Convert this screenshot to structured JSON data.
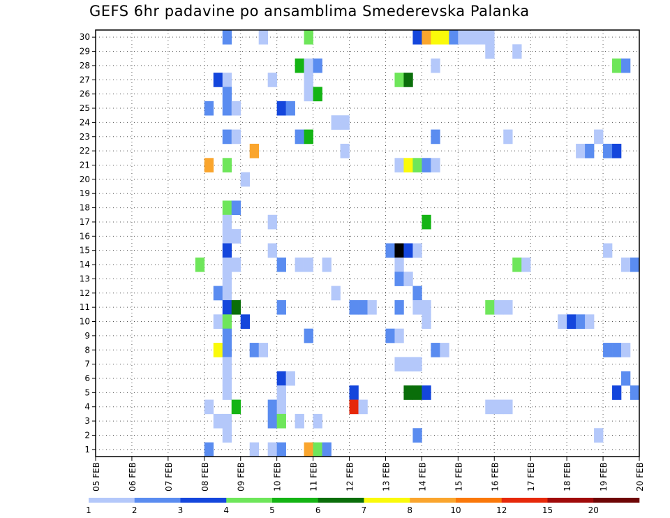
{
  "title": "GEFS 6hr padavine po ansamblima Smederevska Palanka",
  "chart_data": {
    "type": "heatmap",
    "title": "GEFS 6hr padavine po ansamblima Smederevska Palanka",
    "xlabel": "",
    "ylabel": "",
    "x_tick_labels": [
      "05 FEB",
      "06 FEB",
      "07 FEB",
      "08 FEB",
      "09 FEB",
      "10 FEB",
      "11 FEB",
      "12 FEB",
      "13 FEB",
      "14 FEB",
      "15 FEB",
      "16 FEB",
      "17 FEB",
      "18 FEB",
      "19 FEB",
      "20 FEB"
    ],
    "y_tick_labels": [
      "1",
      "2",
      "3",
      "4",
      "5",
      "6",
      "7",
      "8",
      "9",
      "10",
      "11",
      "12",
      "13",
      "14",
      "15",
      "16",
      "17",
      "18",
      "19",
      "20",
      "21",
      "22",
      "23",
      "24",
      "25",
      "26",
      "27",
      "28",
      "29",
      "30"
    ],
    "xlim_days": [
      0,
      15
    ],
    "ylim": [
      0,
      30
    ],
    "step_hours": 6,
    "grid": true,
    "legend_placement": "bottom",
    "legend": {
      "labels": [
        "1",
        "2",
        "3",
        "4",
        "5",
        "6",
        "7",
        "8",
        "10",
        "12",
        "15",
        "20"
      ],
      "colors": [
        "#b4c8fa",
        "#5a8cf0",
        "#1446dc",
        "#6ee65a",
        "#14b414",
        "#0a6e0a",
        "#fafa0a",
        "#faa52d",
        "#fa780a",
        "#e6280a",
        "#a00a0a",
        "#6e0505"
      ]
    },
    "cells": [
      [
        8.5,
        30,
        2
      ],
      [
        9.5,
        30,
        1
      ],
      [
        10.75,
        30,
        4
      ],
      [
        13.75,
        30,
        3
      ],
      [
        14,
        30,
        8
      ],
      [
        14.25,
        30,
        7
      ],
      [
        14.5,
        30,
        7
      ],
      [
        14.75,
        30,
        2
      ],
      [
        15,
        30,
        1
      ],
      [
        15.25,
        30,
        1
      ],
      [
        15.5,
        30,
        1
      ],
      [
        15.75,
        30,
        1
      ],
      [
        15.75,
        29,
        1
      ],
      [
        16.5,
        29,
        1
      ],
      [
        10.5,
        28,
        5
      ],
      [
        10.75,
        28,
        1
      ],
      [
        11,
        28,
        2
      ],
      [
        14.25,
        28,
        1
      ],
      [
        19.25,
        28,
        4
      ],
      [
        19.5,
        28,
        2
      ],
      [
        8.25,
        27,
        3
      ],
      [
        8.5,
        27,
        1
      ],
      [
        9.75,
        27,
        1
      ],
      [
        10.75,
        27,
        1
      ],
      [
        13.25,
        27,
        4
      ],
      [
        13.5,
        27,
        6
      ],
      [
        8.5,
        26,
        2
      ],
      [
        10.75,
        26,
        1
      ],
      [
        11,
        26,
        5
      ],
      [
        8,
        25,
        2
      ],
      [
        8.5,
        25,
        2
      ],
      [
        8.75,
        25,
        1
      ],
      [
        10,
        25,
        3
      ],
      [
        10.25,
        25,
        2
      ],
      [
        11.5,
        24,
        1
      ],
      [
        11.75,
        24,
        1
      ],
      [
        8.5,
        23,
        2
      ],
      [
        8.75,
        23,
        1
      ],
      [
        10.5,
        23,
        2
      ],
      [
        10.75,
        23,
        5
      ],
      [
        14.25,
        23,
        2
      ],
      [
        16.25,
        23,
        1
      ],
      [
        18.75,
        23,
        1
      ],
      [
        9.25,
        22,
        8
      ],
      [
        11.75,
        22,
        1
      ],
      [
        18.25,
        22,
        1
      ],
      [
        18.5,
        22,
        2
      ],
      [
        19,
        22,
        2
      ],
      [
        19.25,
        22,
        3
      ],
      [
        20,
        22,
        2
      ],
      [
        8,
        21,
        8
      ],
      [
        8.5,
        21,
        4
      ],
      [
        13.25,
        21,
        1
      ],
      [
        13.5,
        21,
        7
      ],
      [
        13.75,
        21,
        4
      ],
      [
        14,
        21,
        2
      ],
      [
        14.25,
        21,
        1
      ],
      [
        9,
        20,
        1
      ],
      [
        8.5,
        18,
        4
      ],
      [
        8.75,
        18,
        2
      ],
      [
        8.5,
        17,
        1
      ],
      [
        9.75,
        17,
        1
      ],
      [
        14,
        17,
        5
      ],
      [
        8.5,
        16,
        1
      ],
      [
        8.75,
        16,
        1
      ],
      [
        8.5,
        15,
        3
      ],
      [
        9.75,
        15,
        1
      ],
      [
        13,
        15,
        2
      ],
      [
        13.25,
        15,
        14
      ],
      [
        13.5,
        15,
        3
      ],
      [
        13.75,
        15,
        1
      ],
      [
        19,
        15,
        1
      ],
      [
        7.75,
        14,
        4
      ],
      [
        8.5,
        14,
        1
      ],
      [
        8.75,
        14,
        1
      ],
      [
        10,
        14,
        2
      ],
      [
        10.5,
        14,
        1
      ],
      [
        10.75,
        14,
        1
      ],
      [
        11.25,
        14,
        1
      ],
      [
        13.25,
        14,
        1
      ],
      [
        16.5,
        14,
        4
      ],
      [
        16.75,
        14,
        1
      ],
      [
        19.5,
        14,
        1
      ],
      [
        19.75,
        14,
        2
      ],
      [
        8.5,
        13,
        1
      ],
      [
        13.25,
        13,
        2
      ],
      [
        13.5,
        13,
        1
      ],
      [
        8.25,
        12,
        2
      ],
      [
        8.5,
        12,
        1
      ],
      [
        11.5,
        12,
        1
      ],
      [
        13.75,
        12,
        2
      ],
      [
        8.5,
        11,
        3
      ],
      [
        8.75,
        11,
        6
      ],
      [
        10,
        11,
        2
      ],
      [
        12,
        11,
        2
      ],
      [
        12.25,
        11,
        2
      ],
      [
        12.5,
        11,
        1
      ],
      [
        13.25,
        11,
        2
      ],
      [
        13.75,
        11,
        1
      ],
      [
        14,
        11,
        1
      ],
      [
        15.75,
        11,
        4
      ],
      [
        16,
        11,
        1
      ],
      [
        16.25,
        11,
        1
      ],
      [
        8.25,
        10,
        1
      ],
      [
        8.5,
        10,
        4
      ],
      [
        9,
        10,
        3
      ],
      [
        14,
        10,
        1
      ],
      [
        17.75,
        10,
        1
      ],
      [
        18,
        10,
        3
      ],
      [
        18.25,
        10,
        2
      ],
      [
        18.5,
        10,
        1
      ],
      [
        8.5,
        9,
        2
      ],
      [
        10.75,
        9,
        2
      ],
      [
        13,
        9,
        2
      ],
      [
        13.25,
        9,
        1
      ],
      [
        8.25,
        8,
        7
      ],
      [
        8.5,
        8,
        2
      ],
      [
        9.25,
        8,
        2
      ],
      [
        9.5,
        8,
        1
      ],
      [
        14.25,
        8,
        2
      ],
      [
        14.5,
        8,
        1
      ],
      [
        19,
        8,
        2
      ],
      [
        19.25,
        8,
        2
      ],
      [
        19.5,
        8,
        1
      ],
      [
        8.5,
        7,
        1
      ],
      [
        13.25,
        7,
        1
      ],
      [
        13.5,
        7,
        1
      ],
      [
        13.75,
        7,
        1
      ],
      [
        8.5,
        6,
        1
      ],
      [
        10,
        6,
        3
      ],
      [
        10.25,
        6,
        1
      ],
      [
        8.5,
        5,
        1
      ],
      [
        10,
        5,
        1
      ],
      [
        12,
        5,
        3
      ],
      [
        13.5,
        5,
        6
      ],
      [
        13.75,
        5,
        6
      ],
      [
        14,
        5,
        3
      ],
      [
        19.25,
        5,
        3
      ],
      [
        19.75,
        5,
        2
      ],
      [
        20,
        5,
        2
      ],
      [
        19.5,
        6,
        2
      ],
      [
        8,
        4,
        1
      ],
      [
        8.75,
        4,
        5
      ],
      [
        9.75,
        4,
        2
      ],
      [
        10,
        4,
        1
      ],
      [
        12,
        4,
        10
      ],
      [
        12.25,
        4,
        1
      ],
      [
        15.75,
        4,
        1
      ],
      [
        16,
        4,
        1
      ],
      [
        16.25,
        4,
        1
      ],
      [
        20.25,
        4,
        1
      ],
      [
        8.25,
        3,
        1
      ],
      [
        8.5,
        3,
        1
      ],
      [
        9.75,
        3,
        2
      ],
      [
        10,
        3,
        4
      ],
      [
        10.5,
        3,
        1
      ],
      [
        11,
        3,
        1
      ],
      [
        8.5,
        2,
        1
      ],
      [
        13.75,
        2,
        2
      ],
      [
        18.75,
        2,
        1
      ],
      [
        8,
        1,
        2
      ],
      [
        9.25,
        1,
        1
      ],
      [
        9.75,
        1,
        1
      ],
      [
        10,
        1,
        2
      ],
      [
        10.75,
        1,
        8
      ],
      [
        11,
        1,
        4
      ],
      [
        11.25,
        1,
        2
      ]
    ]
  }
}
